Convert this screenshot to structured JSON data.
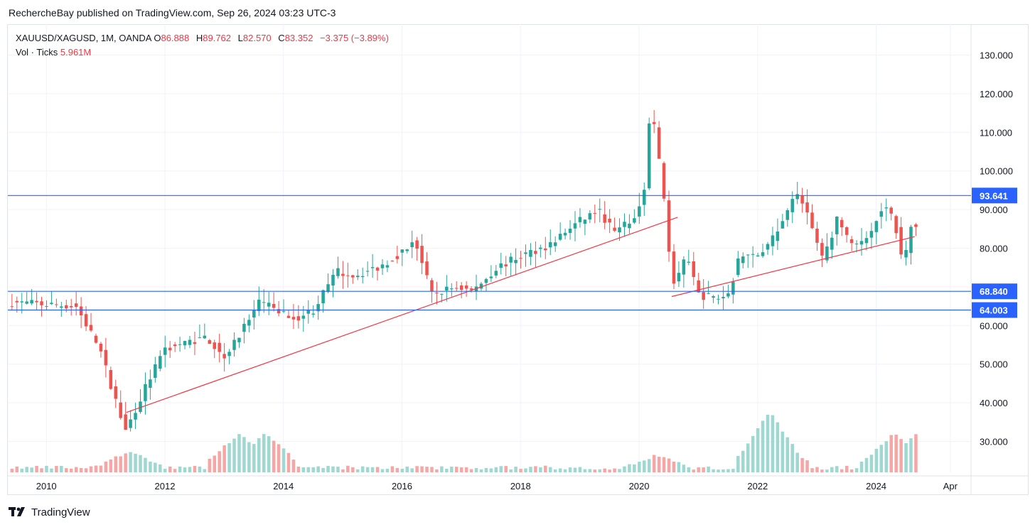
{
  "header": {
    "published_line": "RechercheBay published on TradingView.com, Sep 26, 2024 03:23 UTC-3"
  },
  "legend": {
    "symbol": "XAUUSD/XAGUSD, 1M, OANDA",
    "o_label": "O",
    "o_value": "86.888",
    "h_label": "H",
    "h_value": "89.762",
    "l_label": "L",
    "l_value": "82.570",
    "c_label": "C",
    "c_value": "83.352",
    "change": "−3.375 (−3.89%)",
    "vol_label": "Vol · Ticks",
    "vol_value": "5.961M"
  },
  "footer": {
    "brand": "TradingView"
  },
  "colors": {
    "up": "#26a69a",
    "down": "#ef5350",
    "vol_up": "#9fd8d1",
    "vol_down": "#f7a6a6",
    "hline": "#2962ff",
    "trend": "#f23645",
    "grid": "#f0f3fa"
  },
  "chart_data": {
    "type": "candlestick",
    "title": "XAUUSD/XAGUSD, 1M, OANDA",
    "ylim": [
      22,
      138
    ],
    "y_ticks": [
      30,
      40,
      50,
      60,
      70,
      80,
      90,
      100,
      110,
      120,
      130
    ],
    "y_tick_labels": [
      "30.000",
      "40.000",
      "50.000",
      "60.000",
      "70.000",
      "80.000",
      "90.000",
      "100.000",
      "110.000",
      "120.000",
      "130.000"
    ],
    "x_range": [
      2009.35,
      2025.6
    ],
    "x_ticks": [
      2010,
      2012,
      2014,
      2016,
      2018,
      2020,
      2022,
      2024,
      2025.25
    ],
    "x_tick_labels": [
      "2010",
      "2012",
      "2014",
      "2016",
      "2018",
      "2020",
      "2022",
      "2024",
      "Apr"
    ],
    "horizontal_levels": [
      {
        "value": 93.641,
        "label": "93.641",
        "color": "#2962ff"
      },
      {
        "value": 68.84,
        "label": "68.840",
        "color": "#2962ff"
      },
      {
        "value": 64.003,
        "label": "64.003",
        "color": "#2962ff"
      }
    ],
    "trendlines": [
      {
        "from": [
          2011.35,
          37.5
        ],
        "to": [
          2020.65,
          88.0
        ]
      },
      {
        "from": [
          2020.55,
          67.5
        ],
        "to": [
          2024.65,
          83.0
        ]
      }
    ],
    "key_points": [
      {
        "x": 2009.4,
        "y": 66
      },
      {
        "x": 2010.5,
        "y": 65
      },
      {
        "x": 2010.9,
        "y": 54
      },
      {
        "x": 2011.33,
        "y": 32.5
      },
      {
        "x": 2011.7,
        "y": 45
      },
      {
        "x": 2012.0,
        "y": 54
      },
      {
        "x": 2012.7,
        "y": 57
      },
      {
        "x": 2013.0,
        "y": 52
      },
      {
        "x": 2013.6,
        "y": 66
      },
      {
        "x": 2014.2,
        "y": 62
      },
      {
        "x": 2014.5,
        "y": 64
      },
      {
        "x": 2014.9,
        "y": 74
      },
      {
        "x": 2015.2,
        "y": 73
      },
      {
        "x": 2015.6,
        "y": 75
      },
      {
        "x": 2016.1,
        "y": 80
      },
      {
        "x": 2016.2,
        "y": 83
      },
      {
        "x": 2016.5,
        "y": 68
      },
      {
        "x": 2016.9,
        "y": 70
      },
      {
        "x": 2017.2,
        "y": 69
      },
      {
        "x": 2017.6,
        "y": 75
      },
      {
        "x": 2018.0,
        "y": 78
      },
      {
        "x": 2018.5,
        "y": 81
      },
      {
        "x": 2018.9,
        "y": 86
      },
      {
        "x": 2019.3,
        "y": 90
      },
      {
        "x": 2019.6,
        "y": 84
      },
      {
        "x": 2019.95,
        "y": 88
      },
      {
        "x": 2020.1,
        "y": 97
      },
      {
        "x": 2020.17,
        "y": 112
      },
      {
        "x": 2020.25,
        "y": 112
      },
      {
        "x": 2020.4,
        "y": 96
      },
      {
        "x": 2020.5,
        "y": 80
      },
      {
        "x": 2020.6,
        "y": 70
      },
      {
        "x": 2020.8,
        "y": 78
      },
      {
        "x": 2021.0,
        "y": 68
      },
      {
        "x": 2021.3,
        "y": 67
      },
      {
        "x": 2021.5,
        "y": 68
      },
      {
        "x": 2021.7,
        "y": 78
      },
      {
        "x": 2021.9,
        "y": 78
      },
      {
        "x": 2022.1,
        "y": 79
      },
      {
        "x": 2022.35,
        "y": 85
      },
      {
        "x": 2022.5,
        "y": 90
      },
      {
        "x": 2022.7,
        "y": 95
      },
      {
        "x": 2022.9,
        "y": 86
      },
      {
        "x": 2023.1,
        "y": 77
      },
      {
        "x": 2023.35,
        "y": 88
      },
      {
        "x": 2023.6,
        "y": 80
      },
      {
        "x": 2023.9,
        "y": 84
      },
      {
        "x": 2024.1,
        "y": 91
      },
      {
        "x": 2024.3,
        "y": 88
      },
      {
        "x": 2024.45,
        "y": 75
      },
      {
        "x": 2024.6,
        "y": 86.888
      },
      {
        "x": 2024.73,
        "y": 83.352
      }
    ],
    "volume_spikes": [
      {
        "x": 2011.4,
        "v": 0.15
      },
      {
        "x": 2013.25,
        "v": 0.28
      },
      {
        "x": 2013.7,
        "v": 0.28
      },
      {
        "x": 2020.3,
        "v": 0.12
      },
      {
        "x": 2022.2,
        "v": 0.44
      },
      {
        "x": 2022.3,
        "v": 0.3
      },
      {
        "x": 2024.3,
        "v": 0.28
      },
      {
        "x": 2024.7,
        "v": 0.28
      }
    ]
  }
}
